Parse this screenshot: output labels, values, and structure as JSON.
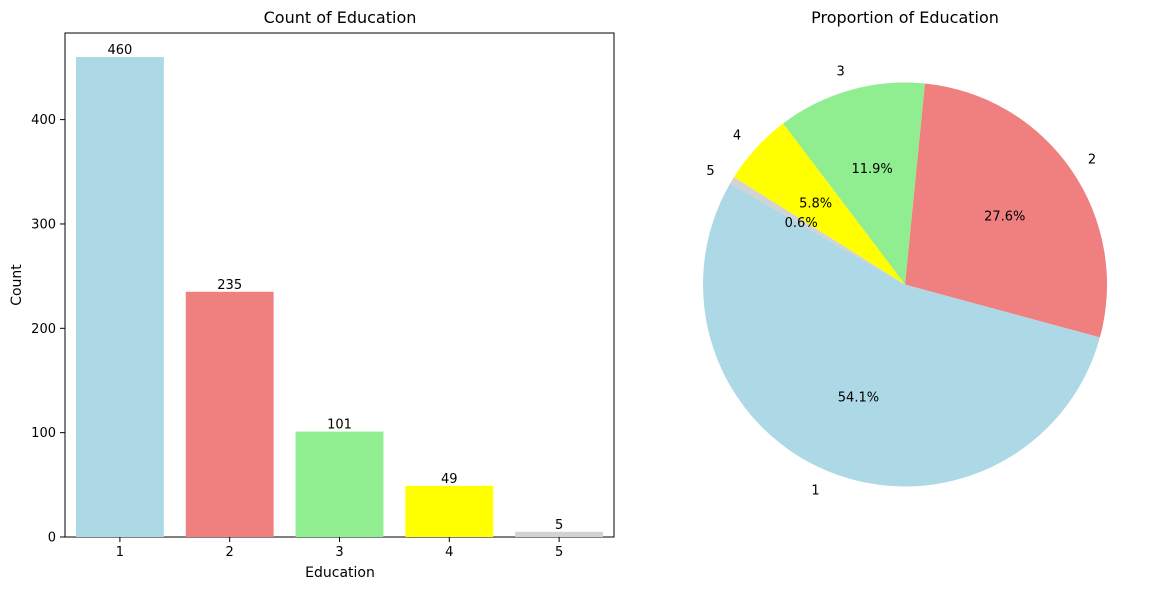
{
  "chart_data": [
    {
      "type": "bar",
      "title": "Count of Education",
      "xlabel": "Education",
      "ylabel": "Count",
      "categories": [
        "1",
        "2",
        "3",
        "4",
        "5"
      ],
      "values": [
        460,
        235,
        101,
        49,
        5
      ],
      "value_labels": [
        "460",
        "235",
        "101",
        "49",
        "5"
      ],
      "colors": [
        "#add8e6",
        "#f08080",
        "#90ee90",
        "#ffff00",
        "#d3d3d3"
      ],
      "ylim": [
        0,
        483
      ],
      "yticks": [
        0,
        100,
        200,
        300,
        400
      ],
      "ytick_labels": [
        "0",
        "100",
        "200",
        "300",
        "400"
      ],
      "grid": false
    },
    {
      "type": "pie",
      "title": "Proportion of Education",
      "categories": [
        "1",
        "2",
        "3",
        "4",
        "5"
      ],
      "values": [
        460,
        235,
        101,
        49,
        5
      ],
      "percent_labels": [
        "54.1%",
        "27.6%",
        "11.9%",
        "5.8%",
        "0.6%"
      ],
      "colors": [
        "#add8e6",
        "#f08080",
        "#90ee90",
        "#ffff00",
        "#d3d3d3"
      ],
      "start_angle_deg": 150,
      "direction": "counterclockwise"
    }
  ]
}
